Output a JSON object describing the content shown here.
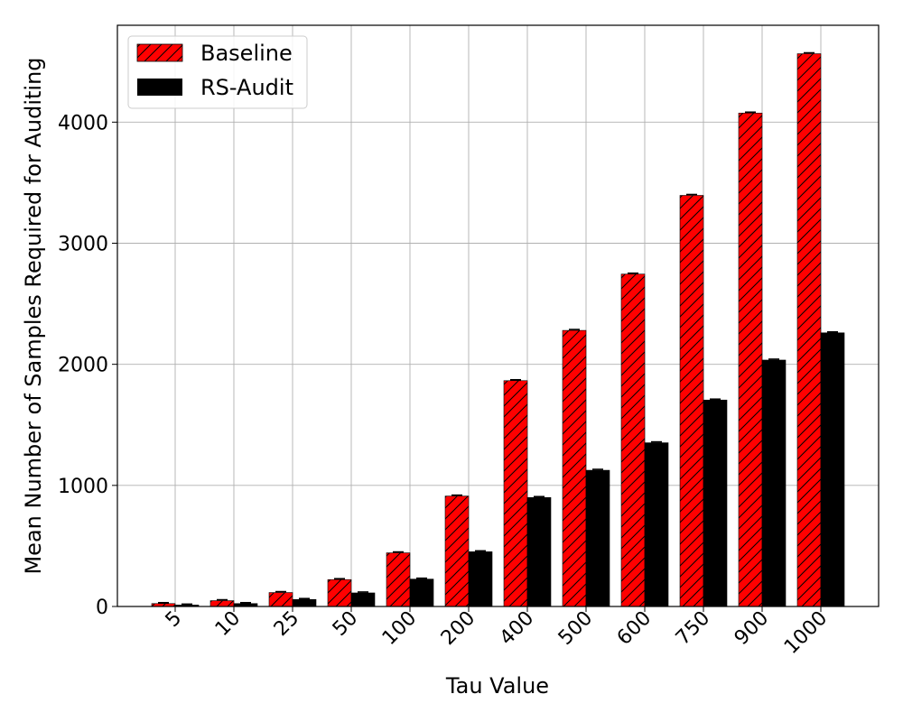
{
  "chart_data": {
    "type": "bar",
    "xlabel": "Tau Value",
    "ylabel": "Mean Number of Samples Required for Auditing",
    "categories": [
      "5",
      "10",
      "25",
      "50",
      "100",
      "200",
      "400",
      "500",
      "600",
      "750",
      "900",
      "1000"
    ],
    "series": [
      {
        "name": "Baseline",
        "color": "#ff0000",
        "hatch": "diagonal",
        "values": [
          24,
          48,
          115,
          222,
          443,
          912,
          1865,
          2280,
          2745,
          3395,
          4075,
          4565
        ]
      },
      {
        "name": "RS-Audit",
        "color": "#000000",
        "hatch": "none",
        "values": [
          12,
          24,
          58,
          112,
          226,
          452,
          900,
          1125,
          1352,
          1705,
          2035,
          2260
        ]
      }
    ],
    "error_bars": true,
    "ylim": [
      0,
      4800
    ],
    "yticks": [
      0,
      1000,
      2000,
      3000,
      4000
    ],
    "grid": true,
    "legend_position": "top-left"
  }
}
